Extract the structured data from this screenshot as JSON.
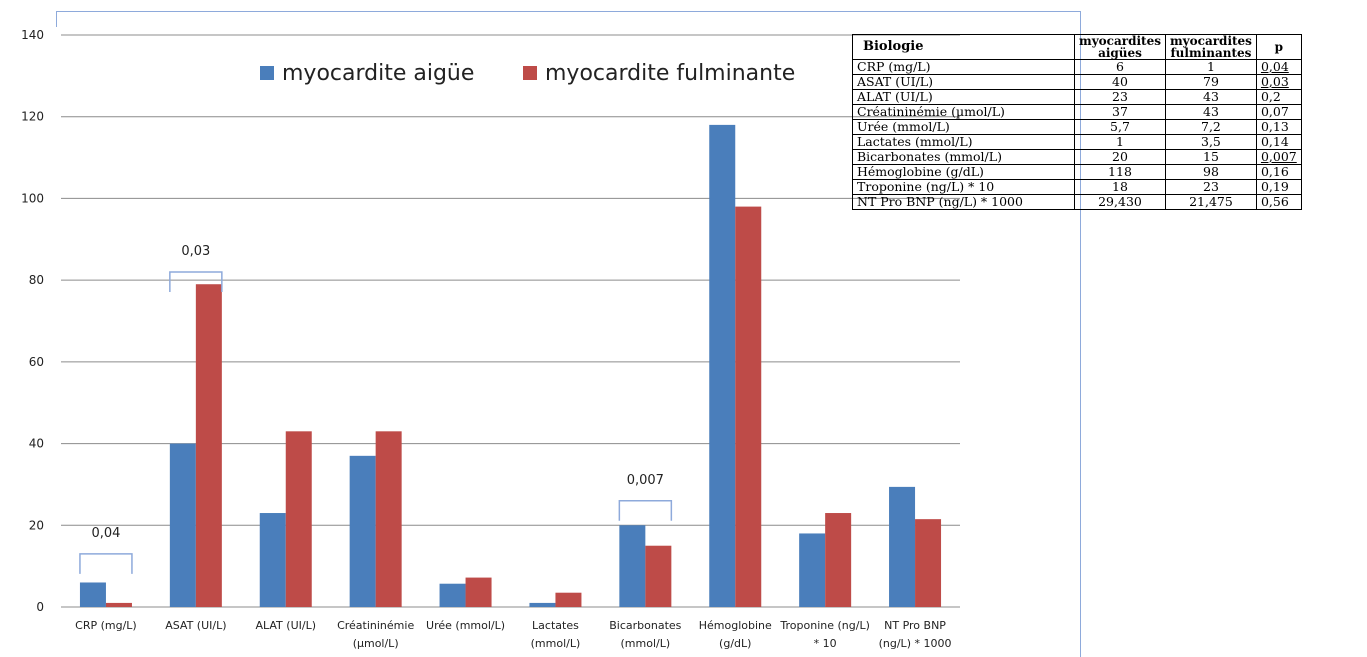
{
  "chart_data": {
    "type": "bar",
    "categories": [
      [
        "CRP (mg/L)"
      ],
      [
        "ASAT (UI/L)"
      ],
      [
        "ALAT (UI/L)"
      ],
      [
        "Créatininémie",
        "(µmol/L)"
      ],
      [
        "Urée (mmol/L)"
      ],
      [
        "Lactates",
        "(mmol/L)"
      ],
      [
        "Bicarbonates",
        "(mmol/L)"
      ],
      [
        "Hémoglobine",
        "(g/dL)"
      ],
      [
        "Troponine (ng/L)",
        "* 10"
      ],
      [
        "NT Pro BNP",
        "(ng/L) * 1000"
      ]
    ],
    "series": [
      {
        "name": "myocardite aigüe",
        "color": "#4a7ebb",
        "values": [
          6,
          40,
          23,
          37,
          5.7,
          1,
          20,
          118,
          18,
          29.4
        ]
      },
      {
        "name": "myocardite fulminante",
        "color": "#be4b48",
        "values": [
          1,
          79,
          43,
          43,
          7.2,
          3.5,
          15,
          98,
          23,
          21.5
        ]
      }
    ],
    "ylim": [
      0,
      140
    ],
    "yticks": [
      0,
      20,
      40,
      60,
      80,
      100,
      120,
      140
    ],
    "grid": true,
    "legend": "top-center",
    "annotations": [
      {
        "category_index": 0,
        "text": "0,04",
        "y_bracket": 13
      },
      {
        "category_index": 1,
        "text": "0,03",
        "y_bracket": 82
      },
      {
        "category_index": 6,
        "text": "0,007",
        "y_bracket": 26
      }
    ]
  },
  "table": {
    "headers": [
      "Biologie",
      "myocardites\naigües",
      "myocardites\nfulminantes",
      "p"
    ],
    "rows": [
      {
        "label": "CRP (mg/L)",
        "a": "6",
        "f": "1",
        "p": "0,04",
        "sig": true
      },
      {
        "label": "ASAT (UI/L)",
        "a": "40",
        "f": "79",
        "p": "0,03",
        "sig": true
      },
      {
        "label": "ALAT (UI/L)",
        "a": "23",
        "f": "43",
        "p": "0,2",
        "sig": false
      },
      {
        "label": "Créatininémie (µmol/L)",
        "a": "37",
        "f": "43",
        "p": "0,07",
        "sig": false
      },
      {
        "label": "Urée (mmol/L)",
        "a": "5,7",
        "f": "7,2",
        "p": "0,13",
        "sig": false
      },
      {
        "label": "Lactates (mmol/L)",
        "a": "1",
        "f": "3,5",
        "p": "0,14",
        "sig": false
      },
      {
        "label": "Bicarbonates (mmol/L)",
        "a": "20",
        "f": "15",
        "p": "0,007",
        "sig": true
      },
      {
        "label": "Hémoglobine (g/dL)",
        "a": "118",
        "f": "98",
        "p": "0,16",
        "sig": false
      },
      {
        "label": "Troponine (ng/L) * 10",
        "a": "18",
        "f": "23",
        "p": "0,19",
        "sig": false
      },
      {
        "label": "NT Pro BNP (ng/L) * 1000",
        "a": "29,430",
        "f": "21,475",
        "p": "0,56",
        "sig": false
      }
    ]
  }
}
